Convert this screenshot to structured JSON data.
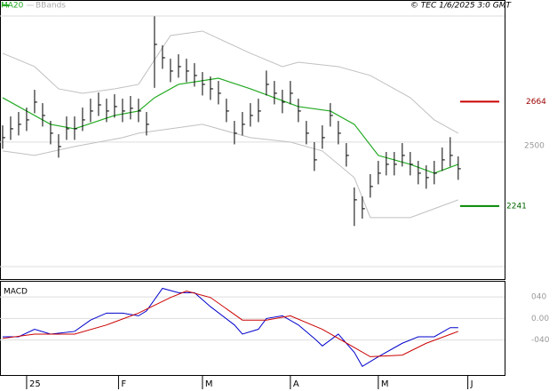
{
  "chart_data": [
    {
      "type": "ohlc",
      "annotation": "© TEC 1/6/2025 3:0 GMT",
      "bar_color": "#000000",
      "xlim": [
        -0.33,
        62.8
      ],
      "ylim": [
        1945,
        3076
      ],
      "yticks": [
        2500
      ],
      "high": [
        2568,
        2604,
        2622,
        2640,
        2712,
        2658,
        2586,
        2532,
        2604,
        2604,
        2640,
        2676,
        2701,
        2676,
        2694,
        2676,
        2687,
        2676,
        2622,
        3010,
        2892,
        2838,
        2856,
        2838,
        2820,
        2784,
        2766,
        2748,
        2676,
        2586,
        2622,
        2658,
        2676,
        2790,
        2748,
        2712,
        2748,
        2676,
        2586,
        2500,
        2568,
        2658,
        2586,
        2496,
        2316,
        2280,
        2370,
        2424,
        2460,
        2460,
        2496,
        2460,
        2424,
        2406,
        2424,
        2478,
        2520,
        2442
      ],
      "low": [
        2473,
        2509,
        2527,
        2545,
        2617,
        2563,
        2491,
        2437,
        2509,
        2509,
        2545,
        2581,
        2606,
        2581,
        2599,
        2581,
        2592,
        2581,
        2527,
        2720,
        2797,
        2743,
        2761,
        2743,
        2725,
        2689,
        2671,
        2653,
        2581,
        2491,
        2527,
        2563,
        2581,
        2689,
        2653,
        2617,
        2653,
        2581,
        2491,
        2383,
        2473,
        2563,
        2491,
        2401,
        2160,
        2190,
        2275,
        2329,
        2365,
        2365,
        2401,
        2365,
        2329,
        2311,
        2329,
        2383,
        2401,
        2347
      ],
      "close": [
        2518,
        2554,
        2572,
        2590,
        2662,
        2608,
        2536,
        2482,
        2554,
        2554,
        2590,
        2626,
        2651,
        2626,
        2644,
        2626,
        2637,
        2626,
        2572,
        2896,
        2842,
        2788,
        2806,
        2788,
        2770,
        2734,
        2716,
        2698,
        2626,
        2536,
        2572,
        2608,
        2626,
        2734,
        2698,
        2662,
        2698,
        2626,
        2536,
        2428,
        2518,
        2608,
        2536,
        2446,
        2266,
        2230,
        2320,
        2374,
        2410,
        2410,
        2446,
        2410,
        2374,
        2356,
        2374,
        2428,
        2446,
        2392
      ],
      "lines": [
        {
          "name": "MA20",
          "color": "#22aa22",
          "x": [
            0,
            6,
            9,
            14,
            17,
            19,
            22,
            27,
            31,
            34,
            37,
            41,
            44,
            47,
            51,
            54,
            57
          ],
          "values": [
            2680,
            2572,
            2554,
            2608,
            2626,
            2680,
            2734,
            2759,
            2716,
            2680,
            2644,
            2626,
            2572,
            2446,
            2410,
            2374,
            2410
          ]
        },
        {
          "name": "BBands",
          "color": "#c0c0c0",
          "x": [
            0,
            4,
            7,
            10,
            14,
            17,
            21,
            25,
            31,
            35,
            37,
            42,
            46,
            51,
            54,
            57
          ],
          "values": [
            2860,
            2806,
            2716,
            2698,
            2716,
            2734,
            2932,
            2950,
            2860,
            2806,
            2824,
            2806,
            2770,
            2680,
            2590,
            2536
          ]
        },
        {
          "color": "#c0c0c0",
          "x": [
            0,
            4,
            9,
            15,
            17,
            25,
            31,
            36,
            40,
            44,
            46,
            51,
            54,
            57
          ],
          "values": [
            2464,
            2446,
            2482,
            2518,
            2536,
            2572,
            2518,
            2500,
            2464,
            2356,
            2194,
            2194,
            2230,
            2266
          ]
        }
      ],
      "levels": [
        {
          "value": 2664,
          "color": "#cc0000"
        },
        {
          "value": 2241,
          "color": "#008800"
        }
      ]
    },
    {
      "type": "line",
      "title": "MACD",
      "xlim": [
        -0.33,
        62.8
      ],
      "ylim": [
        -105,
        70
      ],
      "yticks": [
        {
          "value": 40,
          "label": "040"
        },
        {
          "value": 0,
          "label": "0.00"
        },
        {
          "value": -40,
          "label": "-040"
        }
      ],
      "xticks": [
        {
          "value": 3,
          "label": "25"
        },
        {
          "value": 14.5,
          "label": "F"
        },
        {
          "value": 25,
          "label": "M"
        },
        {
          "value": 36,
          "label": "A"
        },
        {
          "value": 47,
          "label": "M"
        },
        {
          "value": 58.2,
          "label": "J"
        }
      ],
      "series": [
        {
          "color": "#0000cc",
          "x": [
            0,
            2,
            4,
            6,
            9,
            11,
            13,
            15,
            17,
            18,
            20,
            22,
            24,
            26,
            29,
            30,
            32,
            33,
            35,
            37,
            39,
            40,
            42,
            44,
            45,
            47,
            50,
            52,
            54,
            56,
            57
          ],
          "values": [
            -34,
            -34,
            -20,
            -29,
            -24,
            -3,
            10,
            10,
            5,
            14,
            56,
            48,
            48,
            22,
            -12,
            -29,
            -20,
            0,
            5,
            -12,
            -37,
            -51,
            -29,
            -63,
            -89,
            -71,
            -46,
            -34,
            -34,
            -17,
            -17
          ]
        },
        {
          "color": "#cc0000",
          "x": [
            0,
            4,
            9,
            13,
            17,
            21,
            23,
            26,
            30,
            33,
            36,
            40,
            44,
            46,
            50,
            53,
            57
          ],
          "values": [
            -37,
            -29,
            -29,
            -12,
            10,
            39,
            51,
            39,
            -3,
            -3,
            5,
            -20,
            -54,
            -71,
            -68,
            -46,
            -24
          ]
        }
      ]
    }
  ]
}
